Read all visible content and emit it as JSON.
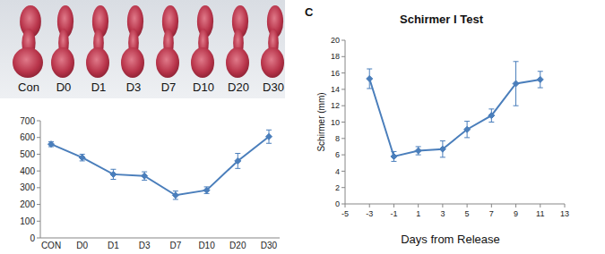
{
  "image": {
    "labels": [
      "Con",
      "D0",
      "D1",
      "D3",
      "D7",
      "D10",
      "D20",
      "D30"
    ]
  },
  "chart_data": [
    {
      "type": "line",
      "categories": [
        "CON",
        "D0",
        "D1",
        "D3",
        "D7",
        "D10",
        "D20",
        "D30"
      ],
      "values": [
        560,
        480,
        380,
        370,
        255,
        285,
        460,
        605
      ],
      "errors": [
        15,
        20,
        30,
        25,
        25,
        20,
        45,
        40
      ],
      "color": "#4a7ebb",
      "marker": "diamond",
      "grid": false,
      "ylim": [
        0,
        700
      ],
      "yticks": [
        0,
        100,
        200,
        300,
        400,
        500,
        600,
        700
      ]
    },
    {
      "type": "line",
      "title": "Schirmer I Test",
      "annotations": [
        "C"
      ],
      "x_label": "Days from Release",
      "y_label": "Schirmer (mm)",
      "x": [
        -3,
        -1,
        1,
        3,
        5,
        7,
        9,
        11
      ],
      "values": [
        15.3,
        5.8,
        6.5,
        6.7,
        9.1,
        10.8,
        14.7,
        15.2
      ],
      "errors": [
        1.2,
        0.6,
        0.5,
        1.0,
        1.0,
        0.8,
        2.7,
        1.0
      ],
      "color": "#4a7ebb",
      "marker": "diamond",
      "grid": false,
      "xlim": [
        -5,
        13
      ],
      "xticks": [
        -5,
        -3,
        -1,
        1,
        3,
        5,
        7,
        9,
        11,
        13
      ],
      "ylim": [
        0,
        20
      ],
      "yticks": [
        0,
        2,
        4,
        6,
        8,
        10,
        12,
        14,
        16,
        18,
        20
      ]
    }
  ]
}
